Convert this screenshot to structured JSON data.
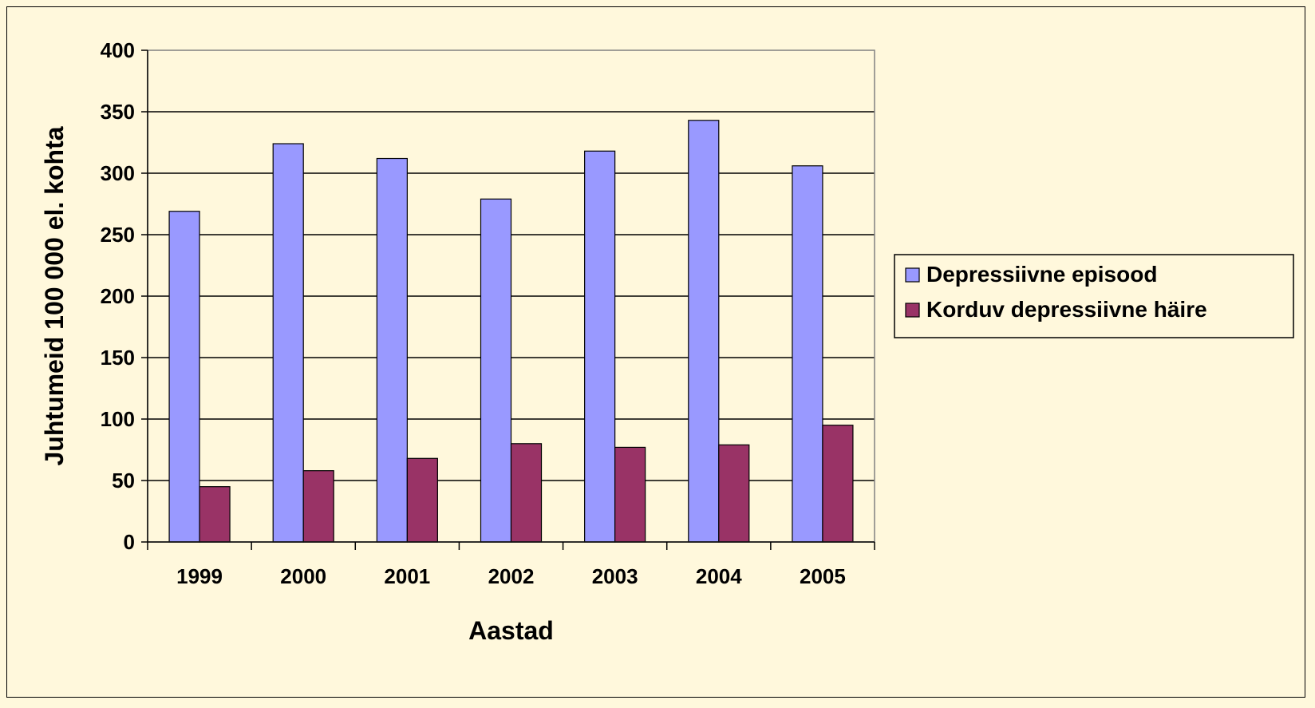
{
  "chart_data": {
    "type": "bar",
    "title": "",
    "xlabel": "Aastad",
    "ylabel": "Juhtumeid 100 000 el. kohta",
    "categories": [
      "1999",
      "2000",
      "2001",
      "2002",
      "2003",
      "2004",
      "2005"
    ],
    "series": [
      {
        "name": "Depressiivne episood",
        "values": [
          269,
          324,
          312,
          279,
          318,
          343,
          306
        ],
        "color": "#9999ff"
      },
      {
        "name": "Korduv depressiivne häire",
        "values": [
          45,
          58,
          68,
          80,
          77,
          79,
          95
        ],
        "color": "#993366"
      }
    ],
    "ylim": [
      0,
      400
    ],
    "yticks": [
      "0",
      "50",
      "100",
      "150",
      "200",
      "250",
      "300",
      "350",
      "400"
    ],
    "grid": true,
    "legend_position": "right"
  }
}
